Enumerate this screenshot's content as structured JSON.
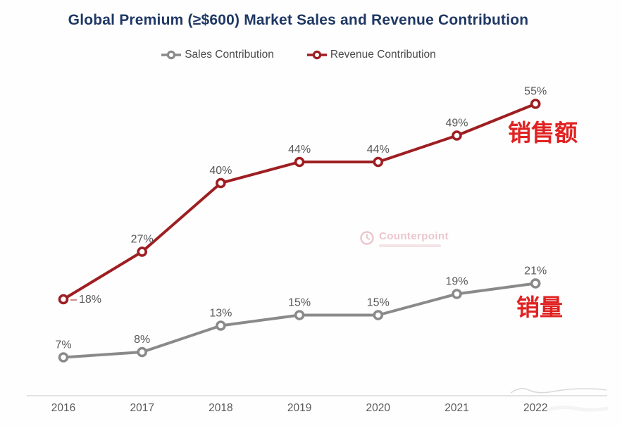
{
  "title": "Global Premium (≥$600) Market Sales and Revenue Contribution",
  "title_color": "#1f3864",
  "chart_data": {
    "type": "line",
    "categories": [
      "2016",
      "2017",
      "2018",
      "2019",
      "2020",
      "2021",
      "2022"
    ],
    "series": [
      {
        "name": "Sales Contribution",
        "color": "#8a8a8a",
        "values": [
          7,
          8,
          13,
          15,
          15,
          19,
          21
        ]
      },
      {
        "name": "Revenue Contribution",
        "color": "#9e1e22",
        "values": [
          18,
          27,
          40,
          44,
          44,
          49,
          55
        ]
      }
    ],
    "value_suffix": "%",
    "xlabel": "",
    "ylabel": "",
    "ylim": [
      0,
      60
    ],
    "grid": false,
    "legend_position": "top",
    "data_label_color": "#595959",
    "axis_color": "#d9d9d9",
    "tick_color": "#595959"
  },
  "annotations": {
    "revenue_label_cn": "销售额",
    "sales_label_cn": "销量",
    "color": "#e02222"
  },
  "watermark": {
    "text": "Counterpoint",
    "color": "#d98f9b"
  }
}
